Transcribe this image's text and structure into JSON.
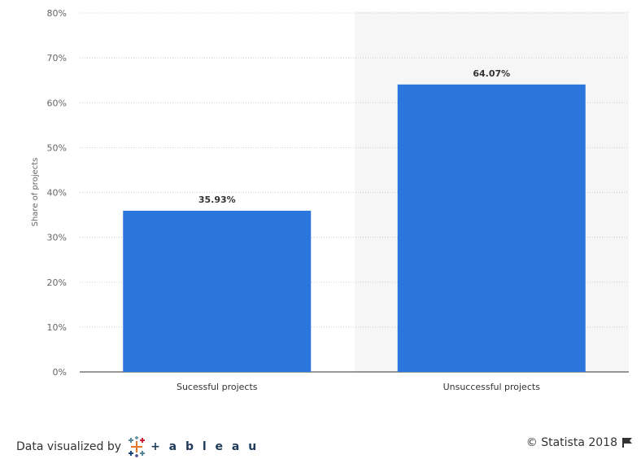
{
  "chart_data": {
    "type": "bar",
    "categories": [
      "Sucessful projects",
      "Unsuccessful projects"
    ],
    "values": [
      35.93,
      64.07
    ],
    "value_labels": [
      "35.93%",
      "64.07%"
    ],
    "ylabel": "Share of projects",
    "ylim": [
      0,
      80
    ],
    "yticks": [
      "0%",
      "10%",
      "20%",
      "30%",
      "40%",
      "50%",
      "60%",
      "70%",
      "80%"
    ],
    "grid": true,
    "bar_color": "#2b76dc",
    "highlight_band_color": "#f6f6f6"
  },
  "footer": {
    "visualized_by": "Data visualized by",
    "tableau_word": "+ a b l e a u",
    "copyright": "© Statista 2018",
    "flag_icon": "flag-icon"
  }
}
